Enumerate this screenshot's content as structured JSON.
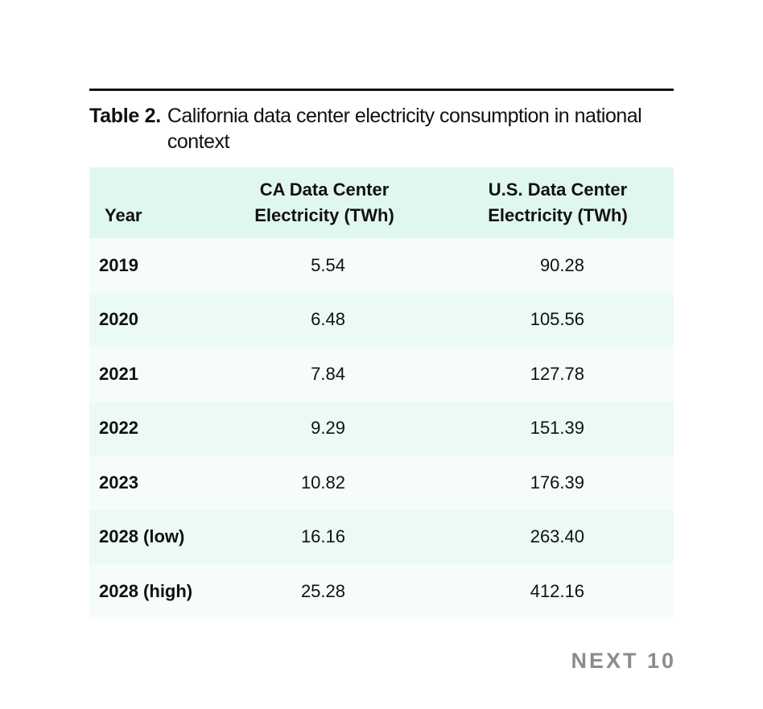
{
  "caption": {
    "label": "Table 2.",
    "text": "California data center electricity consumption in national context"
  },
  "table": {
    "headers": [
      "Year",
      "CA Data Center Electricity (TWh)",
      "U.S. Data Center Electricity (TWh)"
    ],
    "rows": [
      [
        "2019",
        "5.54",
        "90.28"
      ],
      [
        "2020",
        "6.48",
        "105.56"
      ],
      [
        "2021",
        "7.84",
        "127.78"
      ],
      [
        "2022",
        "9.29",
        "151.39"
      ],
      [
        "2023",
        "10.82",
        "176.39"
      ],
      [
        "2028 (low)",
        "16.16",
        "263.40"
      ],
      [
        "2028 (high)",
        "25.28",
        "412.16"
      ]
    ]
  },
  "logo": "NEXT 10",
  "colors": {
    "header_bg": "#e0f7f1",
    "row_odd": "#f6fcfb",
    "row_even": "#ebfaf6",
    "logo": "#8c8c8c"
  }
}
